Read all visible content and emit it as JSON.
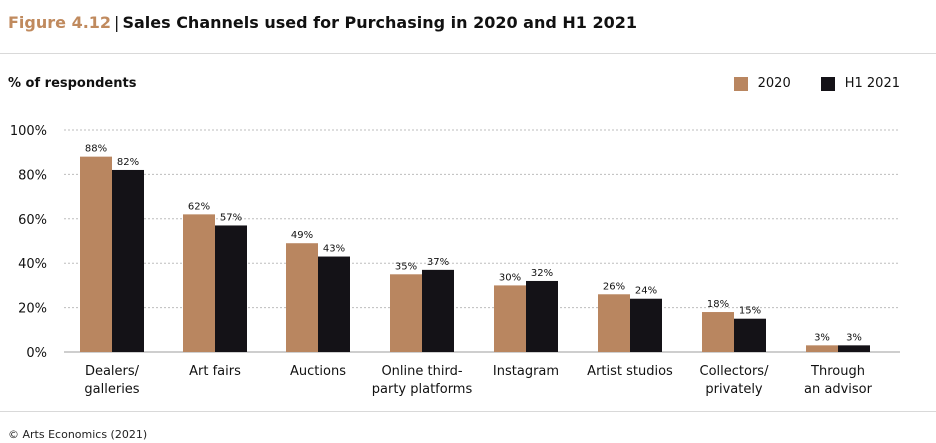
{
  "figure": {
    "label": "Figure 4.12",
    "separator": "|",
    "title": "Sales Channels used for Purchasing in 2020 and H1 2021"
  },
  "source": "© Arts Economics (2021)",
  "colors": {
    "series_2020": "#b98660",
    "series_h1_2021": "#141217",
    "grid": "#bdbdbd"
  },
  "chart_data": {
    "type": "bar",
    "title": "Sales Channels used for Purchasing in 2020 and H1 2021",
    "ylabel": "% of respondents",
    "xlabel": "",
    "ylim": [
      0,
      100
    ],
    "yticks": [
      "0%",
      "20%",
      "40%",
      "60%",
      "80%",
      "100%"
    ],
    "ytick_values": [
      0,
      20,
      40,
      60,
      80,
      100
    ],
    "grid": true,
    "legend_position": "top-right",
    "categories": [
      [
        "Dealers/",
        "galleries"
      ],
      [
        "Art fairs"
      ],
      [
        "Auctions"
      ],
      [
        "Online third-",
        "party platforms"
      ],
      [
        "Instagram"
      ],
      [
        "Artist studios"
      ],
      [
        "Collectors/",
        "privately"
      ],
      [
        "Through",
        "an advisor"
      ]
    ],
    "series": [
      {
        "name": "2020",
        "values": [
          88,
          62,
          49,
          35,
          30,
          26,
          18,
          3
        ],
        "labels": [
          "88%",
          "62%",
          "49%",
          "35%",
          "30%",
          "26%",
          "18%",
          "3%"
        ]
      },
      {
        "name": "H1 2021",
        "values": [
          82,
          57,
          43,
          37,
          32,
          24,
          15,
          3
        ],
        "labels": [
          "82%",
          "57%",
          "43%",
          "37%",
          "32%",
          "24%",
          "15%",
          "3%"
        ]
      }
    ]
  }
}
